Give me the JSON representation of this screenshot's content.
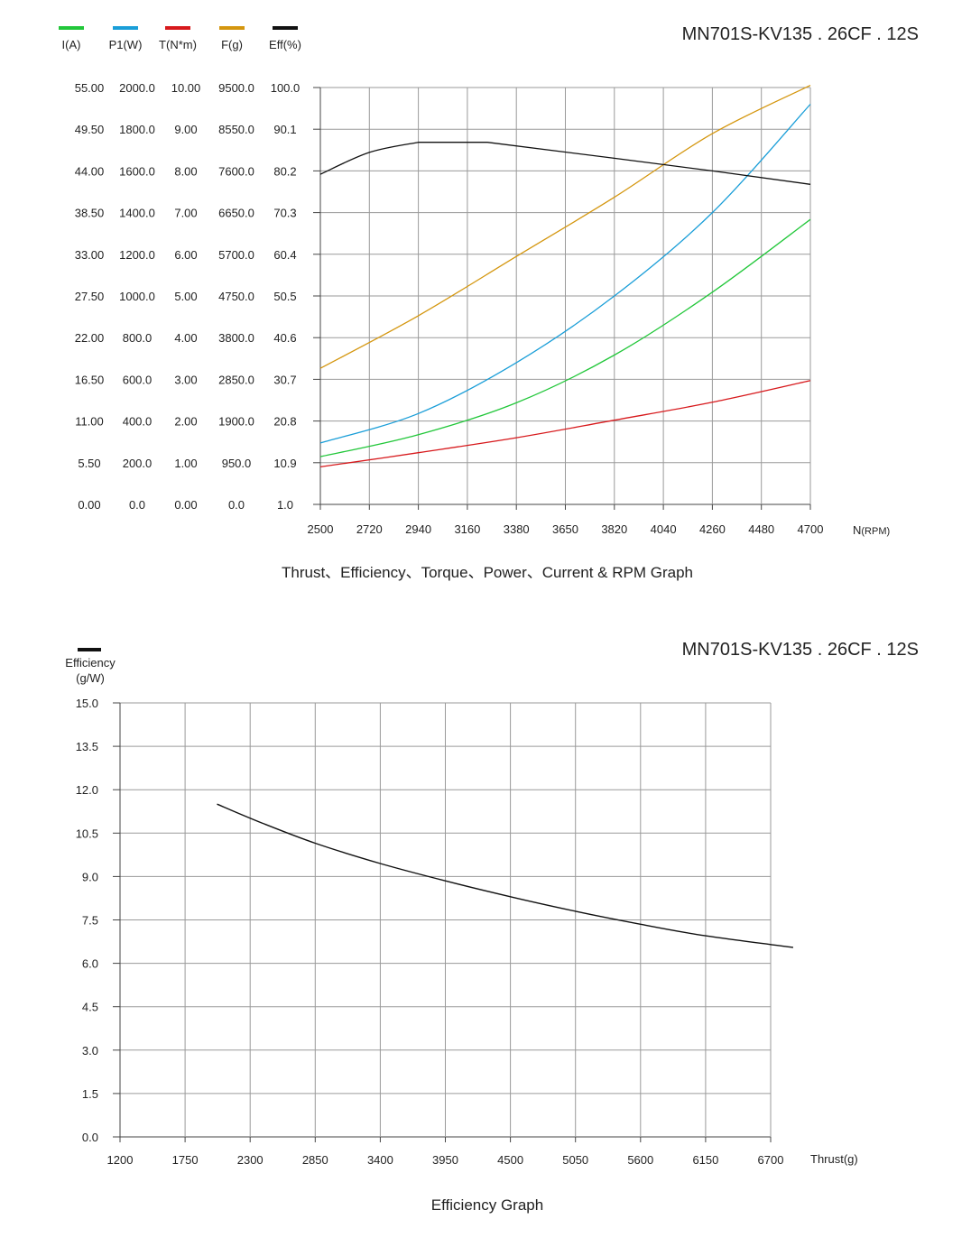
{
  "chart_data": [
    {
      "type": "line",
      "model_label": "MN701S-KV135 . 26CF . 12S",
      "caption": "Thrust、Efficiency、Torque、Power、Current & RPM Graph",
      "xlabel": "N",
      "xunit": "(RPM)",
      "x_ticks": [
        "2500",
        "2720",
        "2940",
        "3160",
        "3380",
        "3650",
        "3820",
        "4040",
        "4260",
        "4480",
        "4700"
      ],
      "xlim": [
        2500,
        4700
      ],
      "grid": true,
      "legend_position": "top-left",
      "axes": [
        {
          "name": "I(A)",
          "color": "#22c73a",
          "min": 0,
          "max": 55,
          "ticks": [
            "0.00",
            "5.50",
            "11.00",
            "16.50",
            "22.00",
            "27.50",
            "33.00",
            "38.50",
            "44.00",
            "49.50",
            "55.00"
          ]
        },
        {
          "name": "P1(W)",
          "color": "#1a9ed8",
          "min": 0,
          "max": 2000,
          "ticks": [
            "0.0",
            "200.0",
            "400.0",
            "600.0",
            "800.0",
            "1000.0",
            "1200.0",
            "1400.0",
            "1600.0",
            "1800.0",
            "2000.0"
          ]
        },
        {
          "name": "T(N*m)",
          "color": "#d7191c",
          "min": 0,
          "max": 10,
          "ticks": [
            "0.00",
            "1.00",
            "2.00",
            "3.00",
            "4.00",
            "5.00",
            "6.00",
            "7.00",
            "8.00",
            "9.00",
            "10.00"
          ]
        },
        {
          "name": "F(g)",
          "color": "#d4960e",
          "min": 0,
          "max": 9500,
          "ticks": [
            "0.0",
            "950.0",
            "1900.0",
            "2850.0",
            "3800.0",
            "4750.0",
            "5700.0",
            "6650.0",
            "7600.0",
            "8550.0",
            "9500.0"
          ]
        },
        {
          "name": "Eff(%)",
          "color": "#111111",
          "min": 1,
          "max": 100,
          "ticks": [
            "1.0",
            "10.9",
            "20.8",
            "30.7",
            "40.6",
            "50.5",
            "60.4",
            "70.3",
            "80.2",
            "90.1",
            "100.0"
          ]
        }
      ],
      "series": [
        {
          "name": "I(A)",
          "color": "#22c73a",
          "x": [
            2500,
            2940,
            3380,
            3820,
            4260,
            4700
          ],
          "values": [
            6.3,
            9.2,
            13.4,
            19.7,
            28.0,
            37.6
          ]
        },
        {
          "name": "P1(W)",
          "color": "#1a9ed8",
          "x": [
            2500,
            2940,
            3380,
            3820,
            4260,
            4700
          ],
          "values": [
            295,
            436,
            680,
            1000,
            1400,
            1920
          ]
        },
        {
          "name": "T(N*m)",
          "color": "#d7191c",
          "x": [
            2500,
            2940,
            3380,
            3820,
            4260,
            4700
          ],
          "values": [
            0.9,
            1.24,
            1.6,
            2.02,
            2.45,
            2.97
          ]
        },
        {
          "name": "F(g)",
          "color": "#d4960e",
          "x": [
            2500,
            2940,
            3380,
            3820,
            4260,
            4700
          ],
          "values": [
            3100,
            4300,
            5650,
            7000,
            8450,
            9550
          ]
        },
        {
          "name": "Eff(%)",
          "color": "#111111",
          "x": [
            2500,
            2720,
            2940,
            3160,
            3250,
            3820,
            4260,
            4700
          ],
          "values": [
            79.4,
            84.6,
            87.0,
            87.0,
            87.0,
            83.2,
            80.2,
            77.0
          ]
        }
      ]
    },
    {
      "type": "line",
      "model_label": "MN701S-KV135 . 26CF . 12S",
      "caption": "Efficiency Graph",
      "legend_label": "Efficiency",
      "ylabel": "(g/W)",
      "xlabel": "Thrust(g)",
      "x_ticks": [
        "1200",
        "1750",
        "2300",
        "2850",
        "3400",
        "3950",
        "4500",
        "5050",
        "5600",
        "6150",
        "6700"
      ],
      "y_ticks": [
        "0.0",
        "1.5",
        "3.0",
        "4.5",
        "6.0",
        "7.5",
        "9.0",
        "10.5",
        "12.0",
        "13.5",
        "15.0"
      ],
      "xlim": [
        1200,
        6700
      ],
      "ylim": [
        0,
        15
      ],
      "grid": true,
      "legend_position": "top-left",
      "series": [
        {
          "name": "Efficiency",
          "color": "#111111",
          "x": [
            2020,
            2400,
            2850,
            3400,
            3950,
            4500,
            5050,
            5600,
            6150,
            6890
          ],
          "values": [
            11.5,
            10.85,
            10.15,
            9.45,
            8.85,
            8.3,
            7.8,
            7.35,
            6.95,
            6.55
          ]
        }
      ]
    }
  ]
}
